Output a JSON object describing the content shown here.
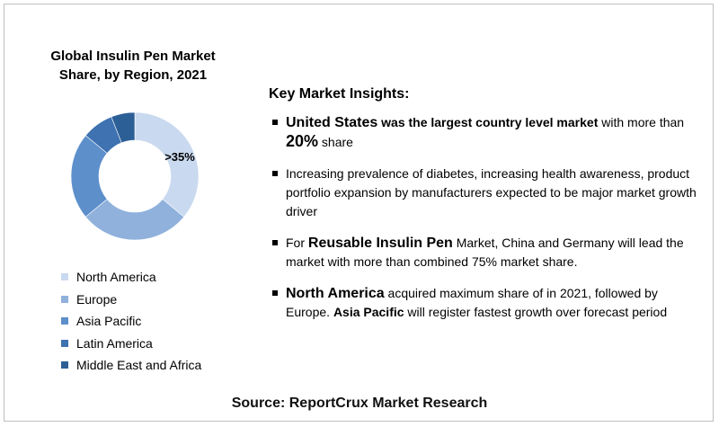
{
  "chart_data": {
    "type": "pie",
    "title": "Global Insulin Pen Market Share, by Region, 2021",
    "categories": [
      "North America",
      "Europe",
      "Asia Pacific",
      "Latin America",
      "Middle East and Africa"
    ],
    "values": [
      36,
      28,
      22,
      8,
      6
    ],
    "colors": [
      "#c9d9ef",
      "#8fb1dc",
      "#5d8fcb",
      "#3e72b1",
      "#2d5f97"
    ],
    "data_labels": [
      ">35%"
    ],
    "legend_position": "bottom"
  },
  "insights": {
    "heading": "Key Market Insights:",
    "b1": {
      "p1": "United States",
      "p2": " was the largest country level market",
      "p3": " with more than",
      "p4": "20%",
      "p5": " share"
    },
    "b2": {
      "text": "Increasing prevalence of diabetes, increasing health awareness, product portfolio expansion by manufacturers expected to be major market growth driver"
    },
    "b3": {
      "p1": "For ",
      "p2": "Reusable Insulin Pen",
      "p3": " Market, China and Germany will lead the market with more than combined 75% market share."
    },
    "b4": {
      "p1": "North America",
      "p2": " acquired maximum share of in 2021, followed by Europe. ",
      "p3": "Asia Pacific",
      "p4": " will register fastest growth over forecast period"
    }
  },
  "source": "Source: ReportCrux Market Research"
}
